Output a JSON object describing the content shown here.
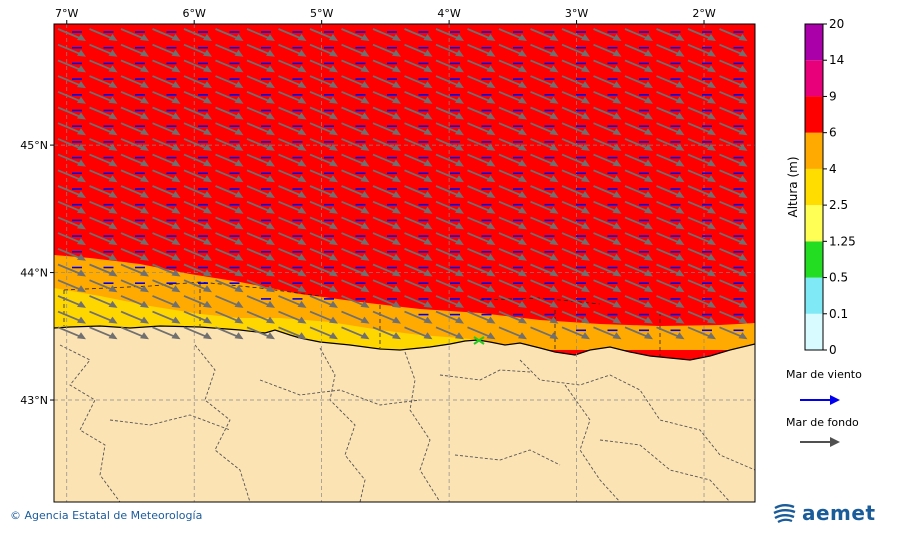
{
  "map": {
    "lon_range": [
      -7.1,
      -1.6
    ],
    "lat_range": [
      42.2,
      45.95
    ],
    "lon_ticks": [
      {
        "value": -7,
        "label": "7°W"
      },
      {
        "value": -6,
        "label": "6°W"
      },
      {
        "value": -5,
        "label": "5°W"
      },
      {
        "value": -4,
        "label": "4°W"
      },
      {
        "value": -3,
        "label": "3°W"
      },
      {
        "value": -2,
        "label": "2°W"
      }
    ],
    "lat_ticks": [
      {
        "value": 45,
        "label": "45°N"
      },
      {
        "value": 44,
        "label": "44°N"
      },
      {
        "value": 43,
        "label": "43°N"
      }
    ],
    "colors": {
      "sea_high": "#ff0000",
      "sea_mid": "#ffaa00",
      "sea_low": "#ffd700",
      "land": "#fce3b4",
      "coast": "#000000",
      "grid": "#888888",
      "wind_arrow": "#0000ee",
      "swell_arrow": "#707070"
    }
  },
  "colorbar": {
    "title": "Altura (m)",
    "levels": [
      "0",
      "0.1",
      "0.5",
      "1.25",
      "2.5",
      "4",
      "6",
      "9",
      "14",
      "20"
    ],
    "colors": [
      "#d8fbff",
      "#7fe9f5",
      "#22dd22",
      "#ffff55",
      "#ffdd00",
      "#ffaa00",
      "#ff0000",
      "#e8007a",
      "#aa00aa"
    ]
  },
  "legend": {
    "wind_label": "Mar de viento",
    "swell_label": "Mar de fondo",
    "wind_color": "#0000ee",
    "swell_color": "#505050"
  },
  "footer": {
    "copyright": "© Agencia Estatal de Meteorología",
    "logo": "aemet"
  }
}
